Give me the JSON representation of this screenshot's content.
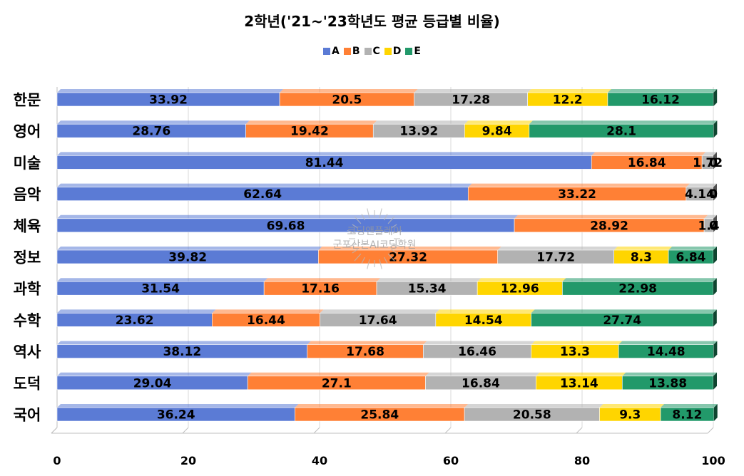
{
  "chart_data": {
    "type": "bar",
    "orientation": "horizontal",
    "stacked": true,
    "title": "2학년('21~'23학년도 평균 등급별 비율)",
    "xlabel": "",
    "ylabel": "",
    "xlim": [
      0,
      100
    ],
    "xticks": [
      0,
      20,
      40,
      60,
      80,
      100
    ],
    "grid": true,
    "legend_position": "top",
    "categories": [
      "한문",
      "영어",
      "미술",
      "음악",
      "체육",
      "정보",
      "과학",
      "수학",
      "역사",
      "도덕",
      "국어"
    ],
    "series": [
      {
        "name": "A",
        "color": "#5B7BD5",
        "values": [
          33.92,
          28.76,
          81.44,
          62.64,
          69.68,
          39.82,
          31.54,
          23.62,
          38.12,
          29.04,
          36.24
        ]
      },
      {
        "name": "B",
        "color": "#FF8035",
        "values": [
          20.5,
          19.42,
          16.84,
          33.22,
          28.92,
          27.32,
          17.16,
          16.44,
          17.68,
          27.1,
          25.84
        ]
      },
      {
        "name": "C",
        "color": "#B2B2B2",
        "values": [
          17.28,
          13.92,
          1.72,
          4.14,
          1.4,
          17.72,
          15.34,
          17.64,
          16.46,
          16.84,
          20.58
        ]
      },
      {
        "name": "D",
        "color": "#FFD500",
        "values": [
          12.2,
          9.84,
          0,
          0,
          0,
          8.3,
          12.96,
          14.54,
          13.3,
          13.14,
          9.3
        ]
      },
      {
        "name": "E",
        "color": "#22996A",
        "values": [
          16.12,
          28.1,
          0,
          0,
          0,
          6.84,
          22.98,
          27.74,
          14.48,
          13.88,
          8.12
        ]
      }
    ]
  },
  "watermark": {
    "line1": "코딩앤플레이",
    "line2": "군포산본AI코딩학원"
  }
}
